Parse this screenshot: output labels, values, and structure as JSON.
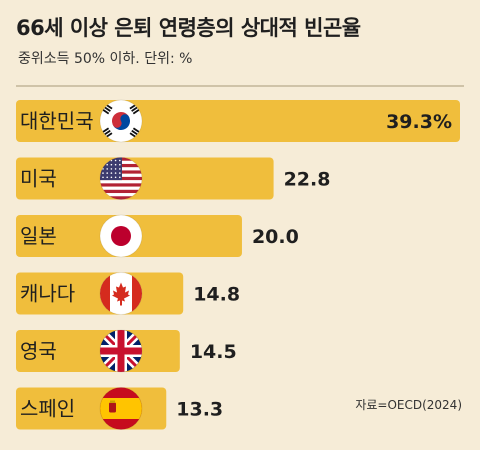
{
  "header": {
    "title": "66세 이상 은퇴 연령층의 상대적 빈곤율",
    "subtitle": "중위소득 50% 이하. 단위: %"
  },
  "source": "자료=OECD(2024)",
  "colors": {
    "background": "#f6ecd7",
    "bar": "#f0be3c",
    "text": "#1f1f1f"
  },
  "chart_data": {
    "type": "bar",
    "orientation": "horizontal",
    "categories": [
      "대한민국",
      "미국",
      "일본",
      "캐나다",
      "영국",
      "스페인"
    ],
    "value_labels": [
      "39.3%",
      "22.8",
      "20.0",
      "14.8",
      "14.5",
      "13.3"
    ],
    "values": [
      39.3,
      22.8,
      20.0,
      14.8,
      14.5,
      13.3
    ],
    "flags": [
      "korea-flag-icon",
      "usa-flag-icon",
      "japan-flag-icon",
      "canada-flag-icon",
      "uk-flag-icon",
      "spain-flag-icon"
    ],
    "title": "66세 이상 은퇴 연령층의 상대적 빈곤율",
    "unit": "%",
    "xlim": [
      0,
      39.3
    ]
  }
}
